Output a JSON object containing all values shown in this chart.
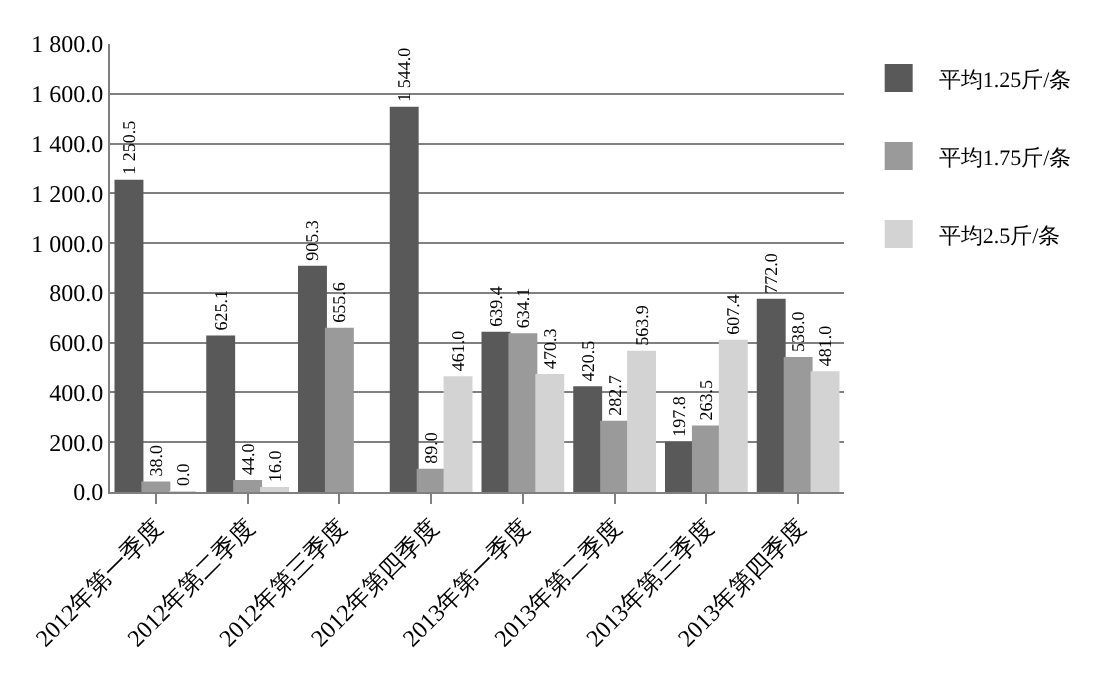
{
  "chart_data": {
    "type": "bar",
    "categories": [
      "2012年第一季度",
      "2012年第二季度",
      "2012年第三季度",
      "2012年第四季度",
      "2013年第一季度",
      "2013年第二季度",
      "2013年第三季度",
      "2013年第四季度"
    ],
    "series": [
      {
        "name": "平均1.25斤/条",
        "color": "#595959",
        "values": [
          1250.5,
          625.1,
          905.3,
          1544.0,
          639.4,
          420.5,
          197.8,
          772.0
        ],
        "value_labels": [
          "1 250.5",
          "625.1",
          "905.3",
          "1 544.0",
          "639.4",
          "420.5",
          "197.8",
          "772.0"
        ]
      },
      {
        "name": "平均1.75斤/条",
        "color": "#9a9a9a",
        "values": [
          38.0,
          44.0,
          655.6,
          89.0,
          634.1,
          282.7,
          263.5,
          538.0
        ],
        "value_labels": [
          "38.0",
          "44.0",
          "655.6",
          "89.0",
          "634.1",
          "282.7",
          "263.5",
          "538.0"
        ]
      },
      {
        "name": "平均2.5斤/条",
        "color": "#d3d3d3",
        "values": [
          0.0,
          16.0,
          null,
          461.0,
          470.3,
          563.9,
          607.4,
          481.0
        ],
        "value_labels": [
          "0.0",
          "16.0",
          null,
          "461.0",
          "470.3",
          "563.9",
          "607.4",
          "481.0"
        ]
      }
    ],
    "ylim": [
      0,
      1800
    ],
    "yticks": [
      {
        "value": 0,
        "label": "0.0"
      },
      {
        "value": 200,
        "label": "200.0"
      },
      {
        "value": 400,
        "label": "400.0"
      },
      {
        "value": 600,
        "label": "600.0"
      },
      {
        "value": 800,
        "label": "800.0"
      },
      {
        "value": 1000,
        "label": "1 000.0"
      },
      {
        "value": 1200,
        "label": "1 200.0"
      },
      {
        "value": 1400,
        "label": "1 400.0"
      },
      {
        "value": 1600,
        "label": "1 600.0"
      },
      {
        "value": 1800,
        "label": "1 800.0"
      }
    ],
    "grid": "y",
    "legend": "right"
  }
}
